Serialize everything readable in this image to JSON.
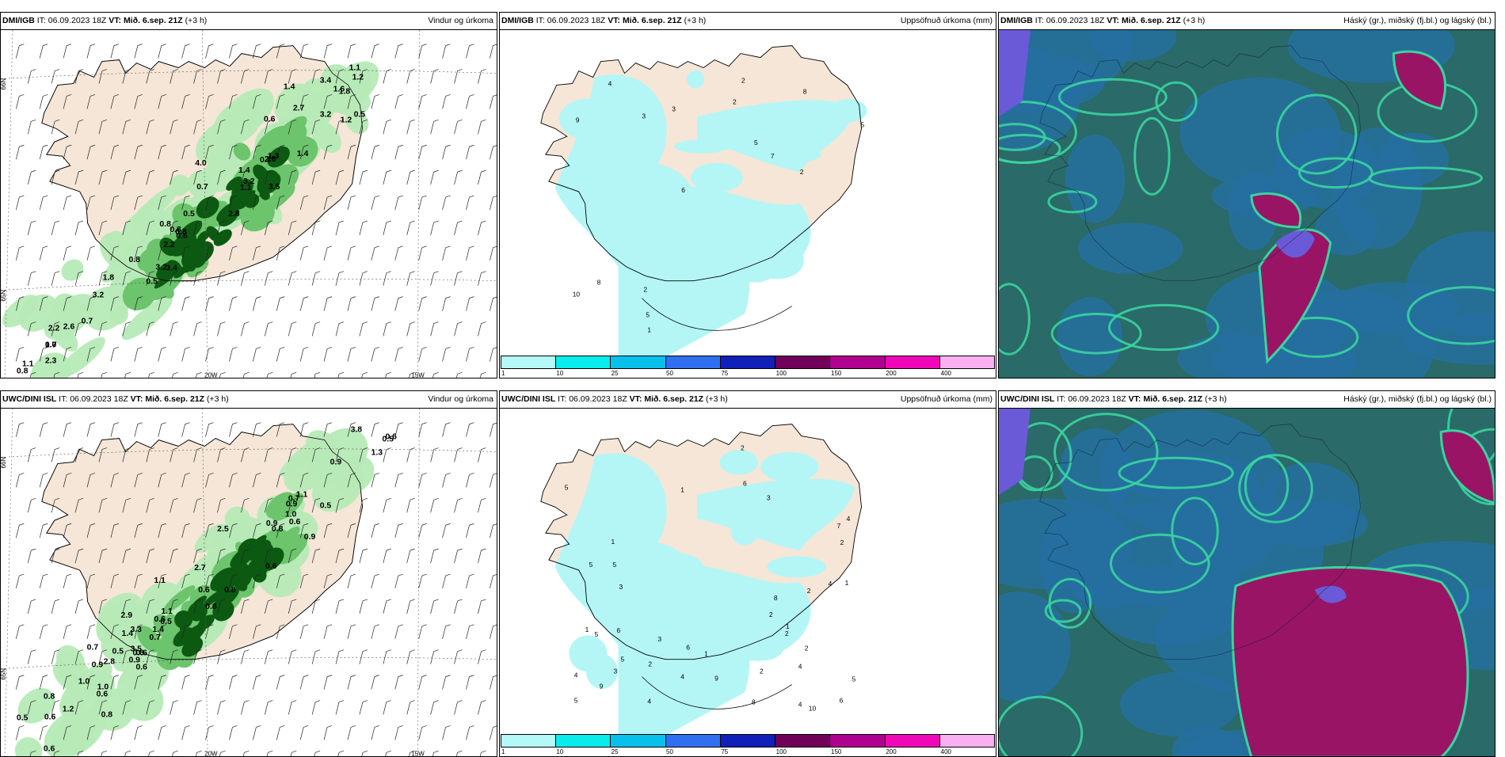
{
  "panels": [
    {
      "model": "DMI/IGB",
      "it_label": "IT:",
      "it": "06.09.2023 18Z",
      "vt_label": "VT:",
      "vt": "Mið. 6.sep. 21Z",
      "lead": "(+3 h)",
      "title": "Vindur og úrkoma",
      "type": "wind",
      "axis": [
        "66N",
        "65N",
        "20W",
        "15W"
      ],
      "values": [
        "1.3",
        "1.0",
        "0.7",
        "0.5",
        "1.1",
        "0.8",
        "0.8",
        "0.6",
        "0.6",
        "0.7",
        "1.4",
        "0.5",
        "1.4",
        "3.4",
        "1.4",
        "1.2",
        "1.1",
        "1.8",
        "3.2",
        "3.4",
        "3.5",
        "2.2",
        "2.2",
        "2.3",
        "4.0",
        "3.2",
        "2.8",
        "2.6",
        "1.8",
        "2.7",
        "3.2",
        "3.2",
        "2.8",
        "0.7",
        "0.7",
        "0.8",
        "0.8",
        "0.5",
        "0.8",
        "1.6",
        "1.1",
        "1.2"
      ]
    },
    {
      "model": "DMI/IGB",
      "it_label": "IT:",
      "it": "06.09.2023 18Z",
      "vt_label": "VT:",
      "vt": "Mið. 6.sep. 21Z",
      "lead": "(+3 h)",
      "title": "Uppsöfnuð úrkoma (mm)",
      "type": "accum",
      "values": [
        "2",
        "2",
        "5",
        "3",
        "5",
        "9",
        "4",
        "6",
        "5",
        "3",
        "1",
        "8",
        "10",
        "2",
        "8",
        "2",
        "7"
      ]
    },
    {
      "model": "DMI/IGB",
      "it_label": "IT:",
      "it": "06.09.2023 18Z",
      "vt_label": "VT:",
      "vt": "Mið. 6.sep. 21Z",
      "lead": "(+3 h)",
      "title": "Háský (gr.), miðský (fj.bl.) og lágský (bl.)",
      "type": "cloud"
    },
    {
      "model": "UWC/DINI ISL",
      "it_label": "IT:",
      "it": "06.09.2023 18Z",
      "vt_label": "VT:",
      "vt": "Mið. 6.sep. 21Z",
      "lead": "(+3 h)",
      "title": "Vindur og úrkoma",
      "type": "wind",
      "axis": [
        "66N",
        "65N",
        "20W",
        "15W"
      ],
      "values": [
        "0.6",
        "0.6",
        "0.5",
        "0.8",
        "0.7",
        "1.1",
        "0.6",
        "0.9",
        "0.8",
        "1.3",
        "0.9",
        "0.6",
        "1.1",
        "0.6",
        "0.7",
        "1.0",
        "3.8",
        "2.7",
        "0.8",
        "0.9",
        "1.1",
        "3.5",
        "1.2",
        "1.4",
        "1.0",
        "0.6",
        "1.0",
        "3.3",
        "0.6",
        "0.5",
        "0.6",
        "0.8",
        "0.9",
        "1.4",
        "2.9",
        "2.5",
        "0.6",
        "0.5",
        "0.8",
        "0.7",
        "0.9",
        "0.8",
        "0.5",
        "0.5",
        "0.9",
        "0.6",
        "2.8"
      ]
    },
    {
      "model": "UWC/DINI ISL",
      "it_label": "IT:",
      "it": "06.09.2023 18Z",
      "vt_label": "VT:",
      "vt": "Mið. 6.sep. 21Z",
      "lead": "(+3 h)",
      "title": "Uppsöfnuð úrkoma (mm)",
      "type": "accum",
      "values": [
        "4",
        "2",
        "3",
        "1",
        "1",
        "2",
        "1",
        "4",
        "5",
        "6",
        "9",
        "4",
        "2",
        "5",
        "6",
        "4",
        "2",
        "1",
        "8",
        "9",
        "3",
        "5",
        "5",
        "4",
        "8",
        "10",
        "6",
        "7",
        "2",
        "1",
        "3",
        "2",
        "4",
        "4",
        "5",
        "6",
        "5",
        "5",
        "2",
        "2",
        "3",
        "1"
      ]
    },
    {
      "model": "UWC/DINI ISL",
      "it_label": "IT:",
      "it": "06.09.2023 18Z",
      "vt_label": "VT:",
      "vt": "Mið. 6.sep. 21Z",
      "lead": "(+3 h)",
      "title": "Háský (gr.), miðský (fj.bl.) og lágský (bl.)",
      "type": "cloud"
    }
  ],
  "legend": {
    "colors": [
      "#b4f8f8",
      "#08ecec",
      "#08c0ec",
      "#3070f0",
      "#1020b8",
      "#700058",
      "#b00090",
      "#f008b8",
      "#f8b0f0"
    ],
    "labels": [
      "1",
      "10",
      "25",
      "50",
      "75",
      "100",
      "150",
      "200",
      "400"
    ]
  },
  "colors": {
    "land": "#f5e6d7",
    "precip_light": "#b4f6f6",
    "green_light": "#b6eab6",
    "green_mid": "#6cc46c",
    "green_dark": "#0c5a12",
    "cloud_base": "#2a6a68",
    "cloud_low": "#2570a0",
    "cloud_mid": "#3ad4a0",
    "cloud_high": "#9a1466",
    "cloud_violet": "#6a5ad8"
  }
}
